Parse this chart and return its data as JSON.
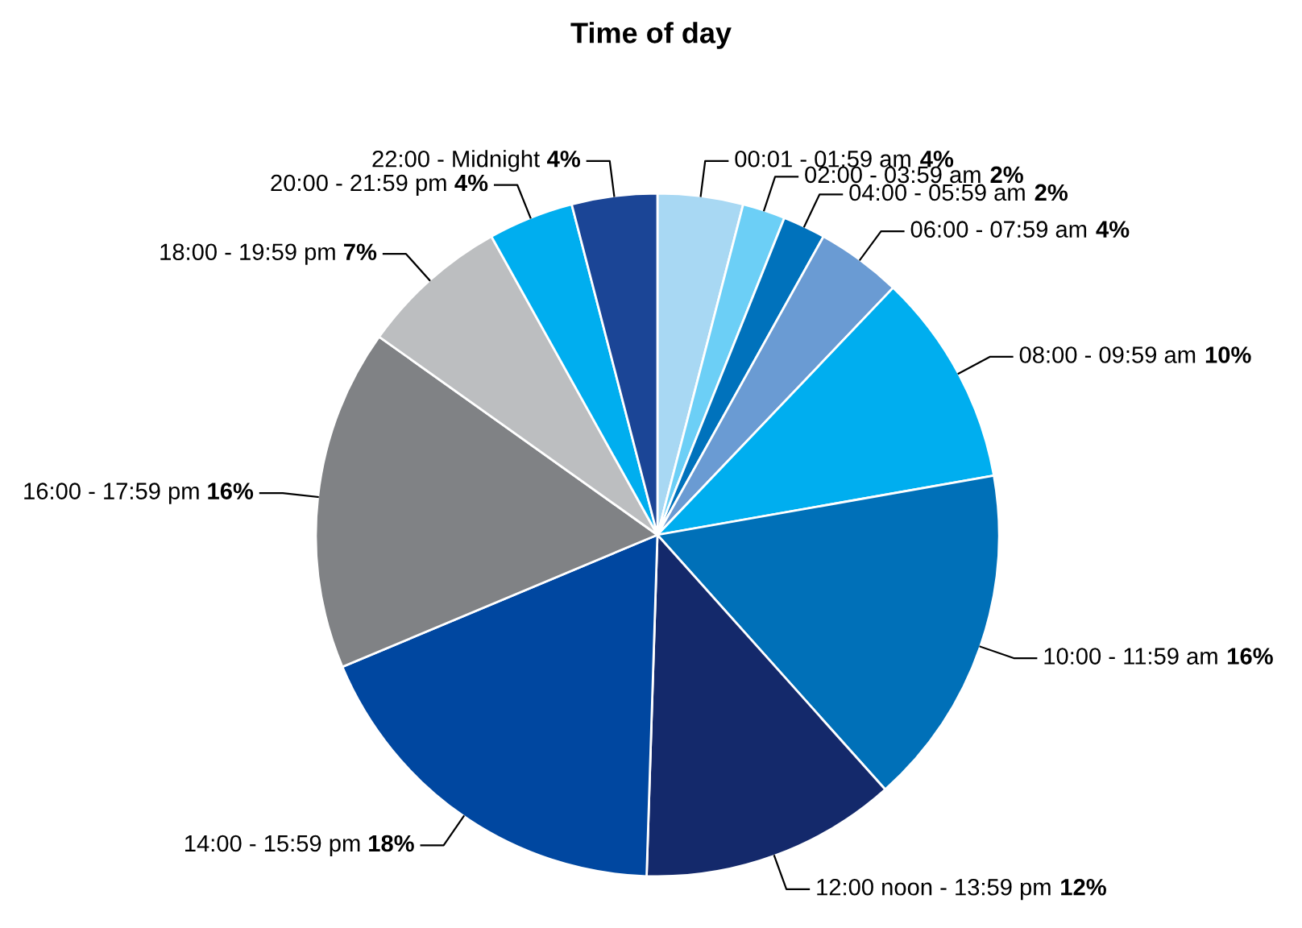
{
  "chart_data": {
    "type": "pie",
    "title": "Time of day",
    "value_labels": [
      "4%",
      "2%",
      "2%",
      "4%",
      "10%",
      "16%",
      "12%",
      "18%",
      "16%",
      "7%",
      "4%",
      "4%"
    ],
    "categories": [
      "00:01 - 01:59 am",
      "02:00 - 03:59 am",
      "04:00 - 05:59 am",
      "06:00 - 07:59 am",
      "08:00 - 09:59 am",
      "10:00 - 11:59 am",
      "12:00 noon - 13:59 pm",
      "14:00 - 15:59 pm",
      "16:00 - 17:59 pm",
      "18:00 - 19:59 pm",
      "20:00 - 21:59 pm",
      "22:00 - Midnight"
    ],
    "values": [
      4,
      2,
      2,
      4,
      10,
      16,
      12,
      18,
      16,
      7,
      4,
      4
    ],
    "colors": [
      "#a8d8f3",
      "#6ccff6",
      "#0072bc",
      "#6a9bd3",
      "#00aeef",
      "#0070b8",
      "#14296b",
      "#0047a0",
      "#808285",
      "#bcbec0",
      "#00aeef",
      "#1b4596"
    ]
  }
}
